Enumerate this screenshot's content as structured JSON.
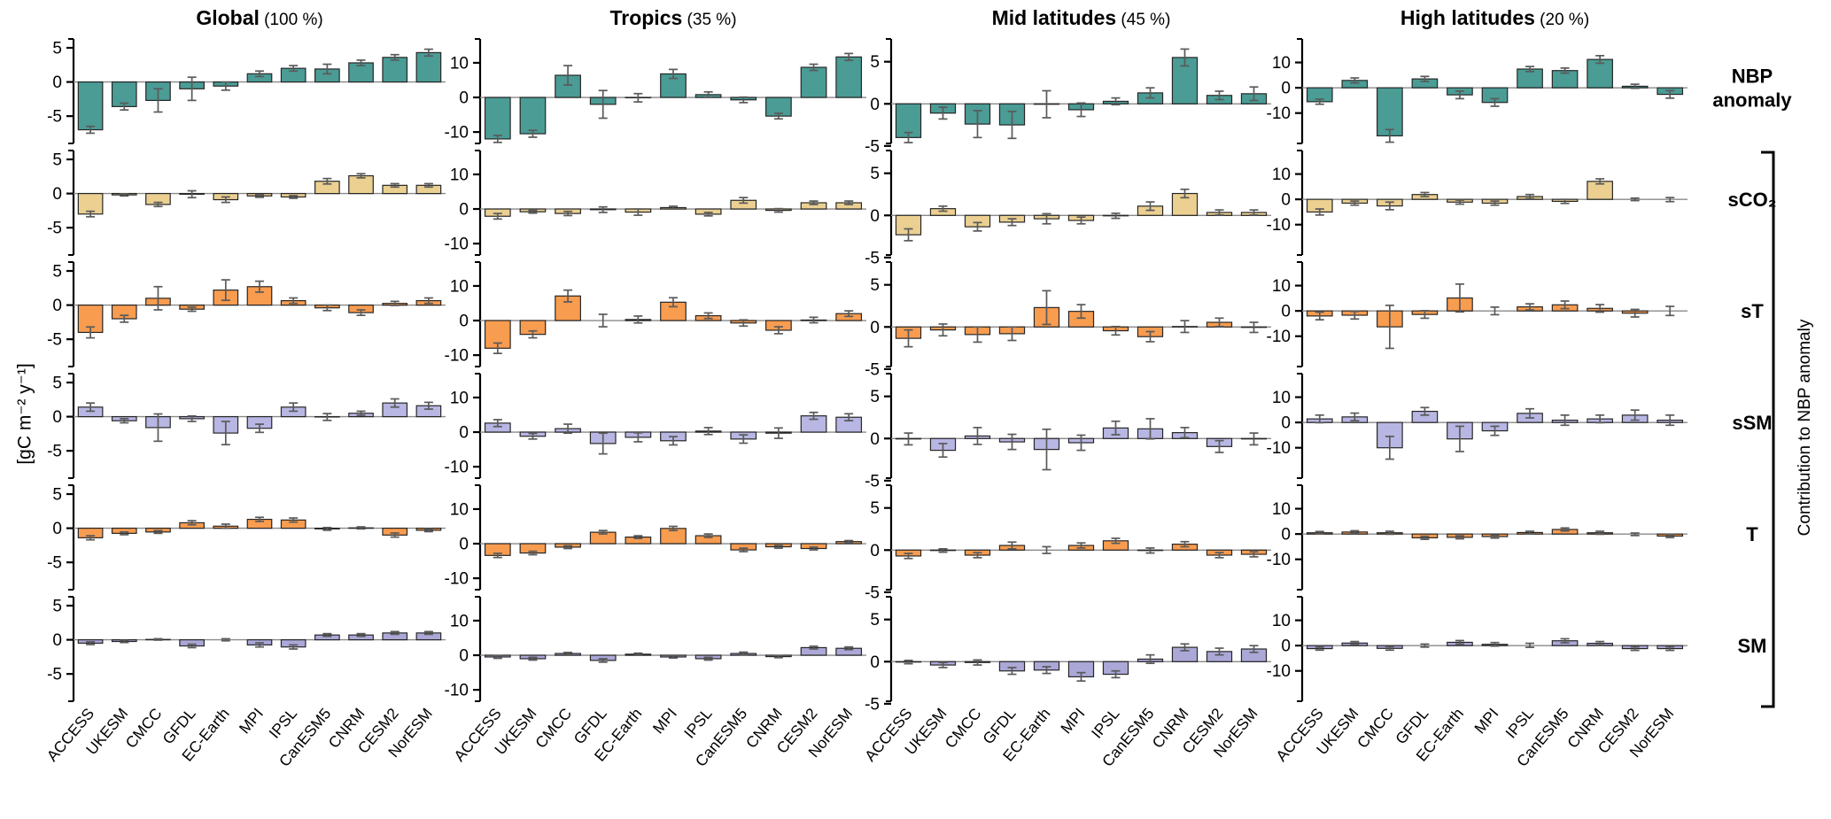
{
  "figure": {
    "ylabel": "[gC m⁻² y⁻¹]",
    "bracket_label": "Contribution to NBP anomaly"
  },
  "chart_data": {
    "type": "bar",
    "categories": [
      "ACCESS",
      "UKESM",
      "CMCC",
      "GFDL",
      "EC-Earth",
      "MPI",
      "IPSL",
      "CanESM5",
      "CNRM",
      "CESM2",
      "NorESM"
    ],
    "ylabel": "[gC m⁻² y⁻¹]",
    "row_labels": [
      "NBP\nanomaly",
      "sCO₂",
      "sT",
      "sSM",
      "T",
      "SM"
    ],
    "bracket_label": "Contribution to NBP anomaly",
    "grid": "off",
    "legend": "none",
    "columns": [
      {
        "title": "Global",
        "share": "(100 %)",
        "yticks": [
          5,
          0,
          -5
        ],
        "ylim": [
          -9.0,
          6.3
        ],
        "rows": [
          {
            "key": "nbp",
            "label": "NBP anomaly",
            "values": [
              -7.0,
              -3.6,
              -2.7,
              -1.0,
              -0.6,
              1.2,
              2.0,
              1.9,
              2.8,
              3.6,
              4.3
            ],
            "err": [
              0.5,
              0.5,
              1.7,
              1.7,
              0.6,
              0.4,
              0.4,
              0.7,
              0.4,
              0.4,
              0.5
            ]
          },
          {
            "key": "sco2",
            "label": "sCO₂",
            "values": [
              -3.0,
              -0.2,
              -1.6,
              -0.1,
              -0.9,
              -0.35,
              -0.5,
              1.8,
              2.6,
              1.2,
              1.2
            ],
            "err": [
              0.4,
              0.15,
              0.3,
              0.5,
              0.4,
              0.2,
              0.2,
              0.4,
              0.3,
              0.25,
              0.25
            ]
          },
          {
            "key": "st",
            "label": "sT",
            "values": [
              -4.0,
              -2.0,
              1.0,
              -0.6,
              2.2,
              2.7,
              0.65,
              -0.4,
              -1.1,
              0.25,
              0.65
            ],
            "err": [
              0.8,
              0.5,
              1.7,
              0.3,
              1.5,
              0.8,
              0.4,
              0.4,
              0.4,
              0.3,
              0.4
            ]
          },
          {
            "key": "ssm",
            "label": "sSM",
            "values": [
              1.4,
              -0.6,
              -1.6,
              -0.3,
              -2.4,
              -1.7,
              1.4,
              -0.05,
              0.5,
              2.0,
              1.6
            ],
            "err": [
              0.6,
              0.3,
              2.0,
              0.4,
              1.7,
              0.6,
              0.6,
              0.5,
              0.3,
              0.6,
              0.5
            ]
          },
          {
            "key": "t",
            "label": "T",
            "values": [
              -1.4,
              -0.75,
              -0.55,
              0.8,
              0.3,
              1.3,
              1.2,
              -0.1,
              0.05,
              -1.0,
              -0.3
            ],
            "err": [
              0.3,
              0.2,
              0.2,
              0.3,
              0.3,
              0.3,
              0.3,
              0.2,
              0.15,
              0.3,
              0.2
            ]
          },
          {
            "key": "sm",
            "label": "SM",
            "values": [
              -0.5,
              -0.25,
              0.05,
              -0.9,
              0.0,
              -0.75,
              -1.05,
              0.7,
              0.7,
              1.0,
              1.0
            ],
            "err": [
              0.2,
              0.15,
              0.1,
              0.25,
              0.15,
              0.3,
              0.3,
              0.2,
              0.2,
              0.2,
              0.2
            ]
          }
        ]
      },
      {
        "title": "Tropics",
        "share": "(35 %)",
        "yticks": [
          10,
          0,
          -10
        ],
        "ylim": [
          -13.3,
          16.9
        ],
        "rows": [
          {
            "key": "nbp",
            "label": "NBP anomaly",
            "values": [
              -12.0,
              -10.5,
              6.4,
              -2.0,
              -0.1,
              6.8,
              0.8,
              -0.7,
              -5.4,
              8.7,
              11.7
            ],
            "err": [
              1.0,
              1.0,
              2.8,
              4.0,
              1.2,
              1.3,
              0.8,
              0.8,
              0.8,
              0.9,
              1.0
            ]
          },
          {
            "key": "sco2",
            "label": "sCO₂",
            "values": [
              -2.1,
              -0.8,
              -1.3,
              -0.2,
              -0.9,
              0.4,
              -1.5,
              2.5,
              -0.4,
              1.8,
              1.8
            ],
            "err": [
              0.8,
              0.4,
              0.6,
              0.8,
              0.9,
              0.4,
              0.5,
              0.8,
              0.5,
              0.5,
              0.5
            ]
          },
          {
            "key": "st",
            "label": "sT",
            "values": [
              -8.0,
              -4.0,
              7.1,
              0.0,
              0.3,
              5.3,
              1.4,
              -0.7,
              -2.8,
              0.15,
              2.0
            ],
            "err": [
              1.5,
              1.0,
              1.7,
              1.8,
              1.0,
              1.3,
              0.8,
              0.9,
              1.0,
              0.8,
              0.8
            ]
          },
          {
            "key": "ssm",
            "label": "sSM",
            "values": [
              2.6,
              -1.2,
              1.0,
              -3.3,
              -1.5,
              -2.5,
              0.3,
              -2.0,
              -0.3,
              4.7,
              4.3
            ],
            "err": [
              1.0,
              0.8,
              1.3,
              3.0,
              1.3,
              1.2,
              1.0,
              1.2,
              1.5,
              1.0,
              1.0
            ]
          },
          {
            "key": "t",
            "label": "T",
            "values": [
              -3.4,
              -2.7,
              -1.0,
              3.3,
              1.9,
              4.4,
              2.3,
              -1.8,
              -0.9,
              -1.4,
              0.6
            ],
            "err": [
              0.6,
              0.5,
              0.4,
              0.5,
              0.4,
              0.6,
              0.5,
              0.5,
              0.4,
              0.4,
              0.3
            ]
          },
          {
            "key": "sm",
            "label": "SM",
            "values": [
              -0.5,
              -1.0,
              0.5,
              -1.5,
              0.3,
              -0.5,
              -1.0,
              0.5,
              -0.4,
              2.2,
              2.0
            ],
            "err": [
              0.4,
              0.4,
              0.3,
              0.5,
              0.3,
              0.3,
              0.4,
              0.4,
              0.3,
              0.4,
              0.4
            ]
          }
        ]
      },
      {
        "title": "Mid latitudes",
        "share": "(45 %)",
        "yticks": [
          5,
          0,
          -5
        ],
        "ylim": [
          -4.7,
          7.7
        ],
        "rows": [
          {
            "key": "nbp",
            "label": "NBP anomaly",
            "values": [
              -4.0,
              -1.1,
              -2.4,
              -2.5,
              -0.05,
              -0.7,
              0.3,
              1.3,
              5.5,
              1.0,
              1.2
            ],
            "err": [
              0.6,
              0.7,
              1.6,
              1.6,
              1.6,
              0.8,
              0.4,
              0.6,
              1.0,
              0.5,
              0.8
            ]
          },
          {
            "key": "sco2",
            "label": "sCO₂",
            "values": [
              -2.3,
              0.8,
              -1.35,
              -0.8,
              -0.4,
              -0.6,
              -0.05,
              1.1,
              2.6,
              0.35,
              0.35
            ],
            "err": [
              0.7,
              0.3,
              0.5,
              0.4,
              0.6,
              0.4,
              0.3,
              0.5,
              0.5,
              0.3,
              0.3
            ]
          },
          {
            "key": "st",
            "label": "sT",
            "values": [
              -1.35,
              -0.35,
              -0.9,
              -0.8,
              2.3,
              1.85,
              -0.45,
              -1.15,
              0.05,
              0.55,
              -0.05
            ],
            "err": [
              1.0,
              0.7,
              0.9,
              0.8,
              2.0,
              0.8,
              0.5,
              0.6,
              0.7,
              0.5,
              0.6
            ]
          },
          {
            "key": "ssm",
            "label": "sSM",
            "values": [
              -0.05,
              -1.4,
              0.3,
              -0.4,
              -1.3,
              -0.5,
              1.25,
              1.15,
              0.7,
              -0.95,
              -0.05
            ],
            "err": [
              0.7,
              0.8,
              1.0,
              0.9,
              2.4,
              0.9,
              0.8,
              1.2,
              0.6,
              0.7,
              0.7
            ]
          },
          {
            "key": "t",
            "label": "T",
            "values": [
              -0.7,
              -0.05,
              -0.6,
              0.55,
              0.0,
              0.55,
              1.1,
              -0.05,
              0.7,
              -0.6,
              -0.5
            ],
            "err": [
              0.3,
              0.2,
              0.3,
              0.4,
              0.4,
              0.3,
              0.3,
              0.3,
              0.3,
              0.3,
              0.3
            ]
          },
          {
            "key": "sm",
            "label": "SM",
            "values": [
              -0.05,
              -0.4,
              -0.1,
              -1.1,
              -1.0,
              -1.8,
              -1.5,
              0.3,
              1.7,
              1.2,
              1.5
            ],
            "err": [
              0.2,
              0.3,
              0.3,
              0.4,
              0.4,
              0.5,
              0.4,
              0.5,
              0.4,
              0.4,
              0.4
            ]
          }
        ]
      },
      {
        "title": "High latitudes",
        "share": "(20 %)",
        "yticks": [
          10,
          0,
          -10
        ],
        "ylim": [
          -22.0,
          19.3
        ],
        "rows": [
          {
            "key": "nbp",
            "label": "NBP anomaly",
            "values": [
              -5.5,
              2.9,
              -19.0,
              3.5,
              -2.8,
              -5.8,
              7.4,
              6.8,
              11.2,
              0.6,
              -2.6
            ],
            "err": [
              1.0,
              1.0,
              2.5,
              1.0,
              1.5,
              1.5,
              1.0,
              1.0,
              1.5,
              0.8,
              1.5
            ]
          },
          {
            "key": "sco2",
            "label": "sCO₂",
            "values": [
              -5.0,
              -1.5,
              -2.6,
              1.9,
              -1.1,
              -1.5,
              1.1,
              -0.8,
              7.1,
              0.0,
              -0.1
            ],
            "err": [
              1.2,
              0.8,
              1.5,
              0.8,
              0.8,
              0.8,
              0.8,
              0.8,
              1.0,
              0.5,
              0.8
            ]
          },
          {
            "key": "st",
            "label": "sT",
            "values": [
              -2.0,
              -1.7,
              -6.3,
              -1.4,
              5.1,
              0.0,
              1.6,
              2.4,
              1.0,
              -0.9,
              0.0
            ],
            "err": [
              1.5,
              1.5,
              8.5,
              1.5,
              5.5,
              1.5,
              1.2,
              1.5,
              1.5,
              1.5,
              1.8
            ]
          },
          {
            "key": "ssm",
            "label": "sSM",
            "values": [
              1.4,
              2.2,
              -10.0,
              4.4,
              -6.5,
              -3.3,
              3.6,
              0.9,
              1.4,
              2.9,
              0.9
            ],
            "err": [
              1.5,
              1.5,
              4.5,
              1.5,
              5.0,
              1.8,
              1.8,
              2.0,
              1.5,
              2.0,
              2.0
            ]
          },
          {
            "key": "t",
            "label": "T",
            "values": [
              0.5,
              0.8,
              0.5,
              -1.5,
              -1.3,
              -1.0,
              0.6,
              1.8,
              0.5,
              -0.1,
              -0.8
            ],
            "err": [
              0.5,
              0.5,
              0.6,
              0.6,
              0.6,
              0.6,
              0.5,
              0.6,
              0.6,
              0.5,
              0.6
            ]
          },
          {
            "key": "sm",
            "label": "SM",
            "values": [
              -1.2,
              1.0,
              -1.1,
              0.0,
              1.3,
              0.5,
              0.1,
              1.9,
              0.9,
              -1.2,
              -1.2
            ],
            "err": [
              0.6,
              0.6,
              0.7,
              0.6,
              0.7,
              0.7,
              0.8,
              0.8,
              0.7,
              0.7,
              0.7
            ]
          }
        ]
      }
    ],
    "colors": {
      "nbp": "#4A9C95",
      "sco2": "#EBD092",
      "st": "#F89C50",
      "ssm": "#B8B6E3",
      "t": "#F89C50",
      "sm": "#ABA8D8",
      "bar_edge": "#262626",
      "error_bar": "#5a5a5a",
      "zero_line": "#8a8a8a",
      "axis": "#000000",
      "text": "#000000"
    }
  }
}
